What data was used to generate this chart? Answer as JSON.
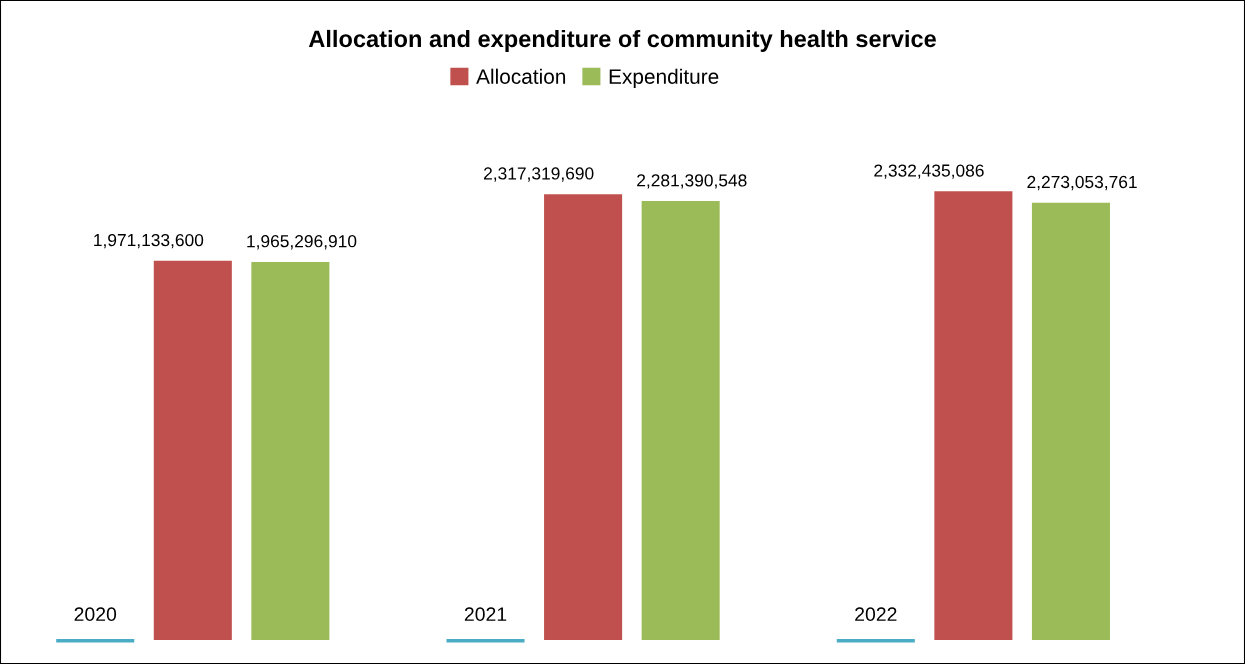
{
  "chart_data": {
    "type": "bar",
    "title": "Allocation and expenditure of community health service",
    "categories": [
      "2020",
      "2021",
      "2022"
    ],
    "series": [
      {
        "name": "Allocation",
        "color": "#c0504d",
        "values": [
          1971133600,
          2317319690,
          2332435086
        ],
        "value_labels": [
          "1,971,133,600",
          "2,317,319,690",
          "2,332,435,086"
        ]
      },
      {
        "name": "Expenditure",
        "color": "#9bbb59",
        "values": [
          1965296910,
          2281390548,
          2273053761
        ],
        "value_labels": [
          "1,965,296,910",
          "2,281,390,548",
          "2,273,053,761"
        ]
      }
    ],
    "tick_labels": "x",
    "legend": "top",
    "grid": false
  }
}
